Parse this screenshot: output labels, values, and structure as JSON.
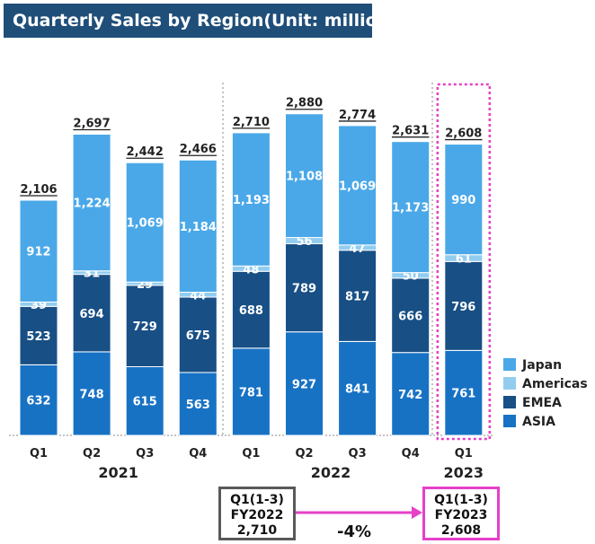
{
  "title": "Quarterly Sales by Region(Unit: million yen)",
  "colors": {
    "Japan": "#4aa8e8",
    "Americas": "#92cdf0",
    "EMEA": "#184f85",
    "ASIA": "#1872c4",
    "highlight": "#e640c8",
    "compare_box": "#595959",
    "arrow": "#e640c8"
  },
  "chart_data": {
    "type": "bar",
    "stacked": true,
    "categories": [
      "Q1",
      "Q2",
      "Q3",
      "Q4",
      "Q1",
      "Q2",
      "Q3",
      "Q4",
      "Q1"
    ],
    "years": [
      {
        "label": "2021",
        "quarters": 4
      },
      {
        "label": "2022",
        "quarters": 4
      },
      {
        "label": "2023",
        "quarters": 1
      }
    ],
    "series": [
      {
        "name": "ASIA",
        "values": [
          632,
          748,
          615,
          563,
          781,
          927,
          841,
          742,
          761
        ]
      },
      {
        "name": "EMEA",
        "values": [
          523,
          694,
          729,
          675,
          688,
          789,
          817,
          666,
          796
        ]
      },
      {
        "name": "Americas",
        "values": [
          39,
          31,
          29,
          44,
          48,
          56,
          47,
          50,
          61
        ]
      },
      {
        "name": "Japan",
        "values": [
          912,
          1224,
          1069,
          1184,
          1193,
          1108,
          1069,
          1173,
          990
        ]
      }
    ],
    "totals": [
      "2,106",
      "2,697",
      "2,442",
      "2,466",
      "2,710",
      "2,880",
      "2,774",
      "2,631",
      "2,608"
    ],
    "legend": [
      "Japan",
      "Americas",
      "EMEA",
      "ASIA"
    ],
    "legend_position": "bottom-right",
    "ylim": [
      0,
      3000
    ],
    "grid": false,
    "highlight_index": 8
  },
  "comparison": {
    "left_box": [
      "Q1(1-3)",
      "FY2022",
      "2,710"
    ],
    "right_box": [
      "Q1(1-3)",
      "FY2023",
      "2,608"
    ],
    "change": "-4%"
  }
}
